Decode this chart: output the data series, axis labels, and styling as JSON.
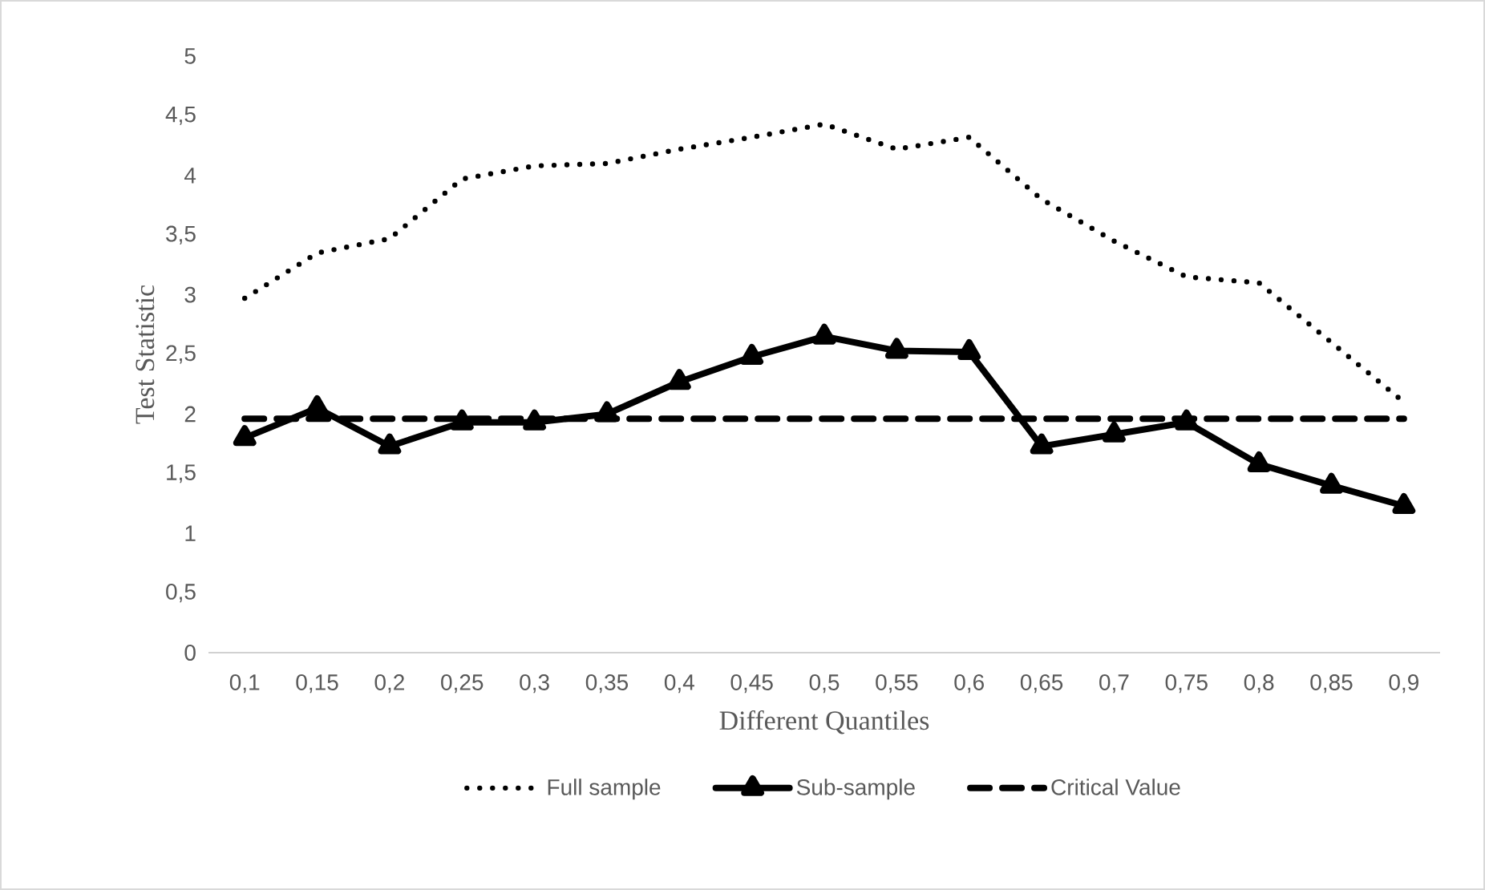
{
  "chart_data": {
    "type": "line",
    "xlabel": "Different Quantiles",
    "ylabel": "Test Statistic",
    "categories": [
      "0,1",
      "0,15",
      "0,2",
      "0,25",
      "0,3",
      "0,35",
      "0,4",
      "0,45",
      "0,5",
      "0,55",
      "0,6",
      "0,65",
      "0,7",
      "0,75",
      "0,8",
      "0,85",
      "0,9"
    ],
    "ylim": [
      0,
      5
    ],
    "yticks": [
      0,
      {
        "value": 0.5,
        "label": "0,5"
      },
      1,
      {
        "value": 1.5,
        "label": "1,5"
      },
      2,
      {
        "value": 2.5,
        "label": "2,5"
      },
      3,
      {
        "value": 3.5,
        "label": "3,5"
      },
      4,
      {
        "value": 4.5,
        "label": "4,5"
      },
      5
    ],
    "legend": "bottom",
    "series": [
      {
        "name": "Full sample",
        "color": "#000000",
        "line_style": "dotted",
        "marker": "none",
        "values": [
          2.97,
          3.35,
          3.47,
          3.97,
          4.08,
          4.1,
          4.22,
          4.32,
          4.43,
          4.22,
          4.32,
          3.8,
          3.45,
          3.15,
          3.1,
          2.6,
          2.1
        ]
      },
      {
        "name": "Sub-sample",
        "color": "#000000",
        "line_style": "solid",
        "marker": "triangle",
        "values": [
          1.8,
          2.05,
          1.73,
          1.93,
          1.93,
          2.0,
          2.27,
          2.48,
          2.65,
          2.53,
          2.52,
          1.73,
          1.83,
          1.93,
          1.58,
          1.4,
          1.23
        ]
      },
      {
        "name": "Critical Value",
        "color": "#000000",
        "line_style": "dashed",
        "marker": "none",
        "values": [
          1.96,
          1.96,
          1.96,
          1.96,
          1.96,
          1.96,
          1.96,
          1.96,
          1.96,
          1.96,
          1.96,
          1.96,
          1.96,
          1.96,
          1.96,
          1.96,
          1.96
        ]
      }
    ]
  }
}
